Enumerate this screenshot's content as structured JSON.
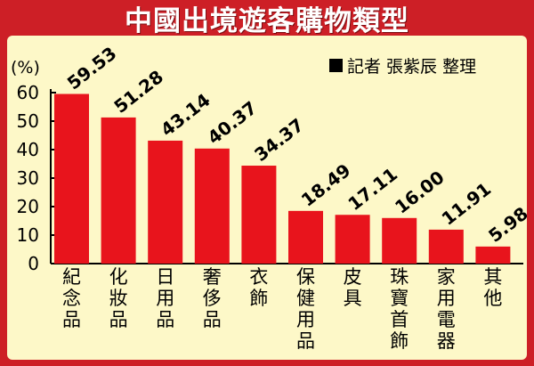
{
  "title": "中國出境遊客購物類型",
  "credit": "記者 張紫辰 整理",
  "colors": {
    "frame": "#cd1f26",
    "panel": "#fdf8c8",
    "bar": "#e8141c"
  },
  "chart_data": {
    "type": "bar",
    "title": "中國出境遊客購物類型",
    "ylabel": "(%)",
    "ylim": [
      0,
      60
    ],
    "yticks": [
      0,
      10,
      20,
      30,
      40,
      50,
      60
    ],
    "grid": false,
    "categories": [
      "紀念品",
      "化妝品",
      "日用品",
      "奢侈品",
      "衣飾",
      "保健用品",
      "皮具",
      "珠寶首飾",
      "家用電器",
      "其他"
    ],
    "values": [
      59.53,
      51.28,
      43.14,
      40.37,
      34.37,
      18.49,
      17.11,
      16.0,
      11.91,
      5.98
    ],
    "value_labels": [
      "59.53",
      "51.28",
      "43.14",
      "40.37",
      "34.37",
      "18.49",
      "17.11",
      "16.00",
      "11.91",
      "5.98"
    ]
  }
}
